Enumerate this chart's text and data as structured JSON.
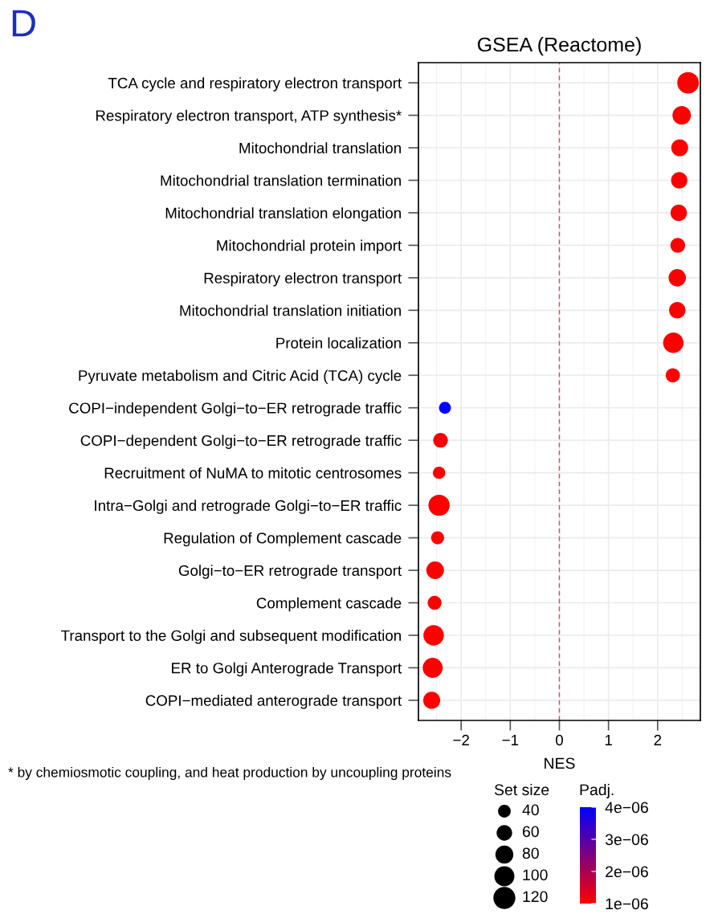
{
  "chart_data": {
    "type": "bubble",
    "title": "GSEA (Reactome)",
    "xlabel": "NES",
    "legend_title": "Set size",
    "clabel": "Padj.",
    "categories": [
      "TCA cycle and respiratory electron transport",
      "Respiratory electron transport, ATP synthesis*",
      "Mitochondrial translation",
      "Mitochondrial translation termination",
      "Mitochondrial translation elongation",
      "Mitochondrial protein import",
      "Respiratory electron transport",
      "Mitochondrial translation initiation",
      "Protein localization",
      "Pyruvate metabolism and Citric Acid (TCA) cycle",
      "COPI−independent Golgi−to−ER retrograde traffic",
      "COPI−dependent Golgi−to−ER retrograde traffic",
      "Recruitment of NuMA to mitotic centrosomes",
      "Intra−Golgi and retrograde Golgi−to−ER traffic",
      "Regulation of Complement cascade",
      "Golgi−to−ER retrograde transport",
      "Complement cascade",
      "Transport to the Golgi and subsequent modification",
      "ER to Golgi Anterograde Transport",
      "COPI−mediated anterograde transport"
    ],
    "orientation": "horizontal",
    "values": [
      2.62,
      2.49,
      2.45,
      2.44,
      2.43,
      2.41,
      2.4,
      2.4,
      2.32,
      2.31,
      -2.33,
      -2.42,
      -2.45,
      -2.45,
      -2.48,
      -2.53,
      -2.54,
      -2.56,
      -2.58,
      -2.6
    ],
    "sizes": [
      116,
      85,
      71,
      66,
      67,
      54,
      75,
      67,
      104,
      50,
      35,
      53,
      38,
      112,
      42,
      77,
      48,
      104,
      99,
      72
    ],
    "cvalues": [
      1e-06,
      1e-06,
      1e-06,
      1e-06,
      1e-06,
      1e-06,
      1e-06,
      1e-06,
      1e-06,
      1e-06,
      4e-06,
      1.1e-06,
      1e-06,
      1e-06,
      1e-06,
      1e-06,
      1e-06,
      1e-06,
      1e-06,
      1e-06
    ],
    "size_legend": [
      40,
      60,
      80,
      100,
      120
    ],
    "clim": [
      1e-06,
      4e-06
    ],
    "cticks": [
      {
        "value": 4e-06,
        "label": "4e−06"
      },
      {
        "value": 3e-06,
        "label": "3e−06"
      },
      {
        "value": 2e-06,
        "label": "2e−06"
      },
      {
        "value": 1e-06,
        "label": "1e−06"
      }
    ],
    "xlim": [
      -2.87,
      2.87
    ],
    "xticks": [
      {
        "value": -2,
        "label": "−2"
      },
      {
        "value": -1,
        "label": "−1"
      },
      0,
      1,
      2
    ],
    "ref_lines": [
      {
        "axis": "x",
        "value": 0,
        "color": "#e8464e",
        "line_style": "dashed"
      }
    ],
    "grid": true,
    "annotations": [
      "D",
      "* by chemiosmotic coupling, and heat production by uncoupling proteins"
    ]
  }
}
